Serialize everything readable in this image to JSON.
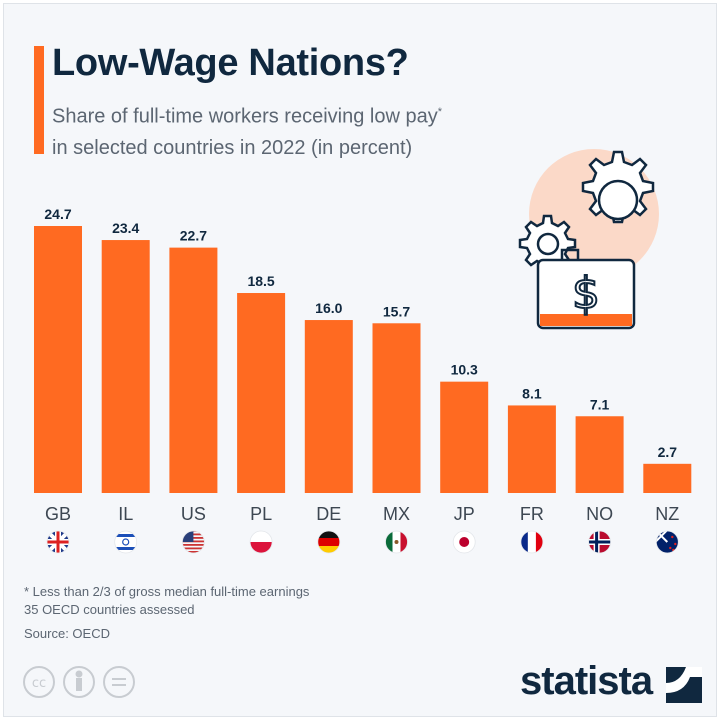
{
  "title": "Low-Wage Nations?",
  "subtitle_line1": "Share of full-time workers receiving low pay",
  "subtitle_asterisk": "*",
  "subtitle_line2": "in selected countries in 2022 (in percent)",
  "colors": {
    "bar": "#ff6a21",
    "title": "#10283f",
    "text": "#5c6672",
    "background": "#f5f7fa"
  },
  "chart_data": {
    "type": "bar",
    "categories": [
      "GB",
      "IL",
      "US",
      "PL",
      "DE",
      "MX",
      "JP",
      "FR",
      "NO",
      "NZ"
    ],
    "values": [
      24.7,
      23.4,
      22.7,
      18.5,
      16.0,
      15.7,
      10.3,
      8.1,
      7.1,
      2.7
    ],
    "value_labels": [
      "24.7",
      "23.4",
      "22.7",
      "18.5",
      "16.0",
      "15.7",
      "10.3",
      "8.1",
      "7.1",
      "2.7"
    ],
    "title": "Low-Wage Nations?",
    "ylabel": "",
    "ylim": [
      0,
      24.7
    ],
    "grid": false,
    "flags": [
      "united-kingdom-flag",
      "israel-flag",
      "united-states-flag",
      "poland-flag",
      "germany-flag",
      "mexico-flag",
      "japan-flag",
      "france-flag",
      "norway-flag",
      "new-zealand-flag"
    ]
  },
  "footer": {
    "note": "* Less than 2/3 of gross median full-time earnings",
    "note2": "35 OECD countries assessed",
    "source": "Source: OECD",
    "logo": "statista"
  },
  "license_icons": [
    "cc-icon",
    "attribution-icon",
    "no-derivatives-icon"
  ]
}
